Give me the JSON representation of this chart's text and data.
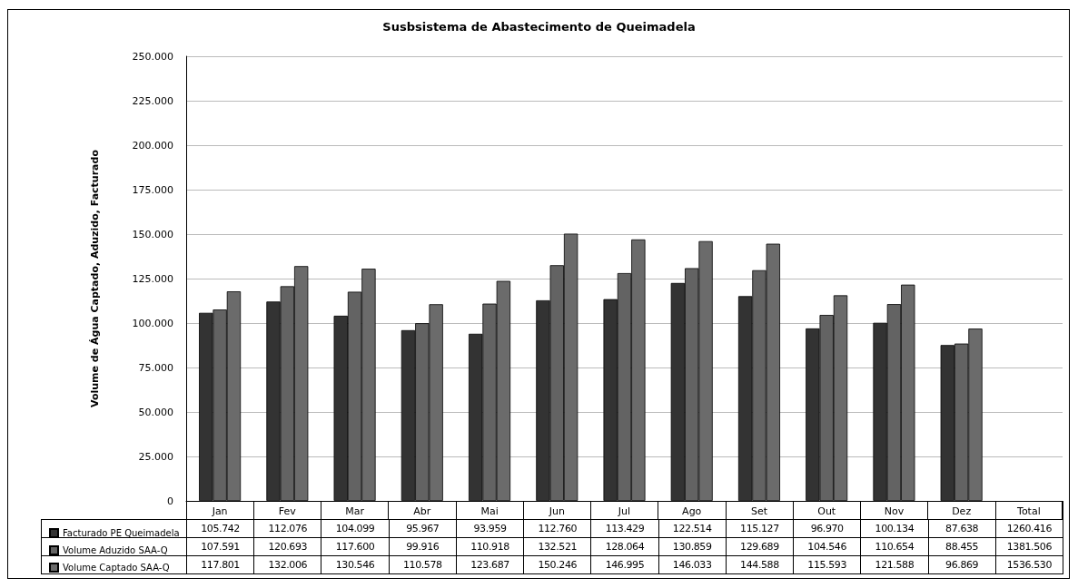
{
  "chart_data": {
    "type": "bar",
    "title": "Susbsistema de Abastecimento de Queimadela",
    "ylabel": "Volume de Água Captado, Aduzido, Facturado",
    "categories": [
      "Jan",
      "Fev",
      "Mar",
      "Abr",
      "Mai",
      "Jun",
      "Jul",
      "Ago",
      "Set",
      "Out",
      "Nov",
      "Dez",
      "Total"
    ],
    "series": [
      {
        "name": "Facturado PE Queimadela",
        "color": "#333333",
        "values": [
          105742,
          112076,
          104099,
          95967,
          93959,
          112760,
          113429,
          122514,
          115127,
          96970,
          100134,
          87638,
          null
        ],
        "value_labels": [
          "105.742",
          "112.076",
          "104.099",
          "95.967",
          "93.959",
          "112.760",
          "113.429",
          "122.514",
          "115.127",
          "96.970",
          "100.134",
          "87.638",
          "1260.416"
        ]
      },
      {
        "name": "Volume Aduzido SAA-Q",
        "color": "#636363",
        "values": [
          107591,
          120693,
          117600,
          99916,
          110918,
          132521,
          128064,
          130859,
          129689,
          104546,
          110654,
          88455,
          null
        ],
        "value_labels": [
          "107.591",
          "120.693",
          "117.600",
          "99.916",
          "110.918",
          "132.521",
          "128.064",
          "130.859",
          "129.689",
          "104.546",
          "110.654",
          "88.455",
          "1381.506"
        ]
      },
      {
        "name": "Volume Captado SAA-Q",
        "color": "#6b6b6b",
        "values": [
          117801,
          132006,
          130546,
          110578,
          123687,
          150246,
          146995,
          146033,
          144588,
          115593,
          121588,
          96869,
          null
        ],
        "value_labels": [
          "117.801",
          "132.006",
          "130.546",
          "110.578",
          "123.687",
          "150.246",
          "146.995",
          "146.033",
          "144.588",
          "115.593",
          "121.588",
          "96.869",
          "1536.530"
        ]
      }
    ],
    "ylim": [
      0,
      250000
    ],
    "yticks": [
      0,
      {
        "value": 25000,
        "label": "25.000"
      },
      {
        "value": 50000,
        "label": "50.000"
      },
      {
        "value": 75000,
        "label": "75.000"
      },
      {
        "value": 100000,
        "label": "100.000"
      },
      {
        "value": 125000,
        "label": "125.000"
      },
      {
        "value": 150000,
        "label": "150.000"
      },
      {
        "value": 175000,
        "label": "175.000"
      },
      {
        "value": 200000,
        "label": "200.000"
      },
      {
        "value": 225000,
        "label": "225.000"
      },
      {
        "value": 250000,
        "label": "250.000"
      }
    ],
    "grid": "y",
    "legend": "bottom left"
  }
}
